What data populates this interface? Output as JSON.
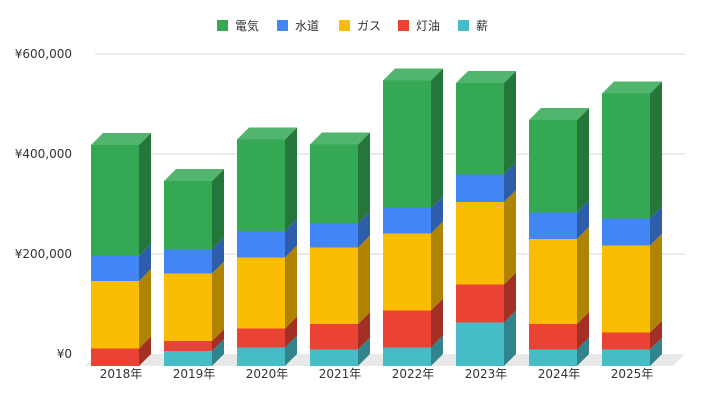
{
  "chart_data": {
    "type": "bar",
    "stacked": true,
    "style": "3d",
    "title": "",
    "xlabel": "",
    "ylabel": "",
    "ylim": [
      0,
      600000
    ],
    "y_ticks": [
      0,
      200000,
      400000,
      600000
    ],
    "y_tick_labels": [
      "¥0",
      "¥200,000",
      "¥400,000",
      "¥600,000"
    ],
    "grid": true,
    "legend_position": "top-center",
    "categories": [
      "2018年",
      "2019年",
      "2020年",
      "2021年",
      "2022年",
      "2023年",
      "2024年",
      "2025年"
    ],
    "series": [
      {
        "name": "薪",
        "color": "#46bdc6",
        "values": [
          0,
          30000,
          37000,
          33000,
          37000,
          87000,
          33000,
          33000
        ]
      },
      {
        "name": "灯油",
        "color": "#ea4335",
        "values": [
          35000,
          20000,
          38000,
          51000,
          74000,
          76000,
          51000,
          34000
        ]
      },
      {
        "name": "ガス",
        "color": "#fbbc04",
        "values": [
          135000,
          135000,
          142000,
          153000,
          154000,
          165000,
          170000,
          174000
        ]
      },
      {
        "name": "水道",
        "color": "#4285f4",
        "values": [
          50000,
          48000,
          53000,
          48000,
          51000,
          55000,
          53000,
          54000
        ]
      },
      {
        "name": "電気",
        "color": "#34a853",
        "values": [
          222000,
          137000,
          183000,
          158000,
          255000,
          183000,
          185000,
          250000
        ]
      }
    ],
    "legend_order": [
      "電気",
      "水道",
      "ガス",
      "灯油",
      "薪"
    ]
  }
}
